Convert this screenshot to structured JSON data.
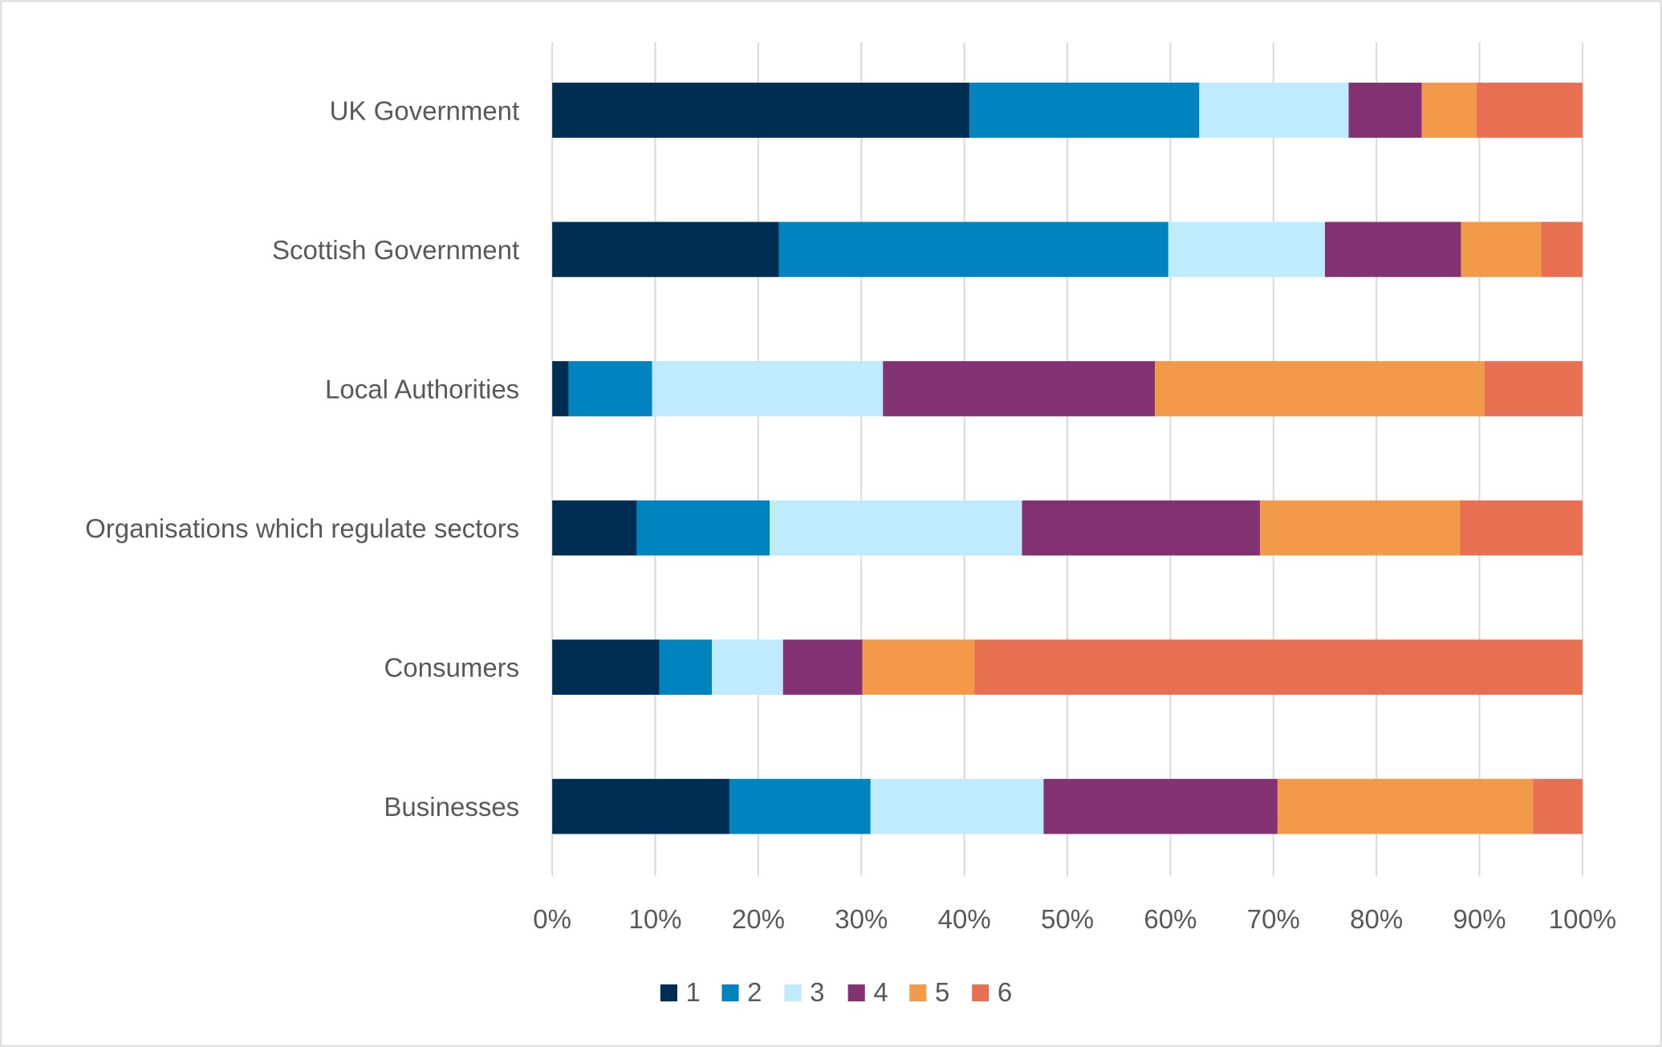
{
  "chart_data": {
    "type": "bar",
    "orientation": "horizontal",
    "stacked": "percent",
    "categories": [
      "UK Government",
      "Scottish Government",
      "Local Authorities",
      "Organisations which regulate sectors",
      "Consumers",
      "Businesses"
    ],
    "series": [
      {
        "name": "1",
        "color": "#002D54",
        "values": [
          40.5,
          22.0,
          1.6,
          8.2,
          10.4,
          17.2
        ]
      },
      {
        "name": "2",
        "color": "#0083BF",
        "values": [
          22.3,
          37.8,
          8.1,
          12.9,
          5.1,
          13.7
        ]
      },
      {
        "name": "3",
        "color": "#BFEBFD",
        "values": [
          14.5,
          15.2,
          22.4,
          24.5,
          6.9,
          16.8
        ]
      },
      {
        "name": "4",
        "color": "#823273",
        "values": [
          7.1,
          13.2,
          26.4,
          23.1,
          7.7,
          22.7
        ]
      },
      {
        "name": "5",
        "color": "#F2994A",
        "values": [
          5.3,
          7.8,
          32.0,
          19.4,
          10.9,
          24.8
        ]
      },
      {
        "name": "6",
        "color": "#E87052",
        "values": [
          10.3,
          4.0,
          9.5,
          11.9,
          59.0,
          4.8
        ]
      }
    ],
    "x_ticks": [
      "0%",
      "10%",
      "20%",
      "30%",
      "40%",
      "50%",
      "60%",
      "70%",
      "80%",
      "90%",
      "100%"
    ],
    "xlim": [
      0,
      100
    ],
    "grid": "vertical",
    "legend": "bottom",
    "title": "",
    "xlabel": "",
    "ylabel": ""
  }
}
